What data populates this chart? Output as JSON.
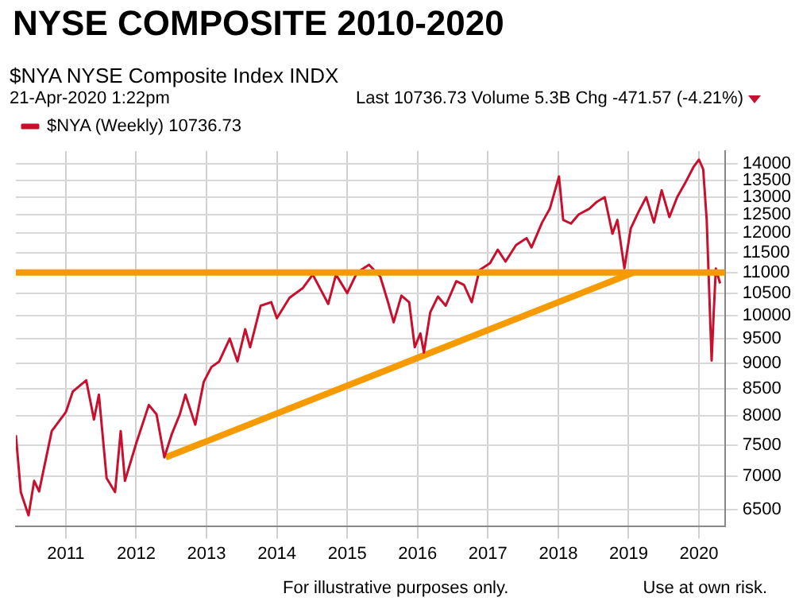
{
  "chart_data": {
    "type": "line",
    "title": "NYSE COMPOSITE 2010-2020",
    "subtitle": "$NYA NYSE Composite Index INDX",
    "annotations": [
      "21-Apr-2020 1:22pm",
      "Last 10736.73 Volume 5.3B Chg -471.57 (-4.21%)",
      "For illustrative purposes only.",
      "Use at own risk."
    ],
    "series": [
      {
        "name": "$NYA (Weekly) 10736.73",
        "color": "#c8102e",
        "x": [
          2010.29,
          2010.36,
          2010.47,
          2010.55,
          2010.62,
          2010.8,
          2011.0,
          2011.1,
          2011.29,
          2011.4,
          2011.47,
          2011.58,
          2011.7,
          2011.78,
          2011.84,
          2012.0,
          2012.18,
          2012.29,
          2012.4,
          2012.51,
          2012.62,
          2012.7,
          2012.84,
          2012.96,
          2013.07,
          2013.18,
          2013.33,
          2013.44,
          2013.55,
          2013.62,
          2013.77,
          2013.92,
          2014.0,
          2014.18,
          2014.37,
          2014.51,
          2014.73,
          2014.84,
          2015.0,
          2015.14,
          2015.31,
          2015.47,
          2015.58,
          2015.66,
          2015.77,
          2015.88,
          2015.96,
          2016.04,
          2016.09,
          2016.18,
          2016.29,
          2016.4,
          2016.55,
          2016.66,
          2016.77,
          2016.88,
          2017.03,
          2017.14,
          2017.25,
          2017.4,
          2017.55,
          2017.62,
          2017.77,
          2017.88,
          2018.01,
          2018.07,
          2018.18,
          2018.29,
          2018.44,
          2018.55,
          2018.66,
          2018.77,
          2018.84,
          2018.94,
          2019.03,
          2019.14,
          2019.25,
          2019.36,
          2019.47,
          2019.58,
          2019.69,
          2019.8,
          2019.92,
          2020.0,
          2020.06,
          2020.11,
          2020.18,
          2020.21,
          2020.24,
          2020.3
        ],
        "values": [
          7670,
          6760,
          6420,
          6930,
          6770,
          7740,
          8070,
          8450,
          8660,
          7940,
          8390,
          6970,
          6760,
          7740,
          6930,
          7530,
          8200,
          8030,
          7300,
          7700,
          8030,
          8390,
          7850,
          8630,
          8920,
          9030,
          9500,
          9030,
          9700,
          9320,
          10220,
          10300,
          9940,
          10400,
          10630,
          10950,
          10260,
          10950,
          10510,
          11000,
          11190,
          10900,
          10300,
          9850,
          10450,
          10300,
          9320,
          9610,
          9210,
          10070,
          10430,
          10220,
          10790,
          10700,
          10300,
          11060,
          11230,
          11570,
          11270,
          11690,
          11870,
          11630,
          12290,
          12670,
          13610,
          12360,
          12260,
          12510,
          12670,
          12870,
          13000,
          11990,
          12360,
          11100,
          12130,
          12580,
          13000,
          12290,
          13200,
          12440,
          13000,
          13400,
          13890,
          14130,
          13830,
          12360,
          9050,
          10070,
          11100,
          10737
        ]
      },
      {
        "type": "line",
        "color": "#f59b00",
        "x": [
          2012.42,
          2019.07
        ],
        "values": [
          7300,
          11000
        ]
      }
    ],
    "ref_lines": [
      {
        "axis": "y",
        "value": 11000,
        "color": "#f59b00"
      }
    ],
    "xlim": [
      2010.29,
      2020.37
    ],
    "xticks": [
      2011,
      2012,
      2013,
      2014,
      2015,
      2016,
      2017,
      2018,
      2019,
      2020
    ],
    "ylim": [
      6270,
      14400
    ],
    "yticks": [
      6500,
      7000,
      7500,
      8000,
      8500,
      9000,
      9500,
      10000,
      10500,
      11000,
      11500,
      12000,
      12500,
      13000,
      13500,
      14000
    ],
    "log": "y",
    "grid": true,
    "legend": "top left",
    "marker": "none",
    "line_style": "solid"
  }
}
